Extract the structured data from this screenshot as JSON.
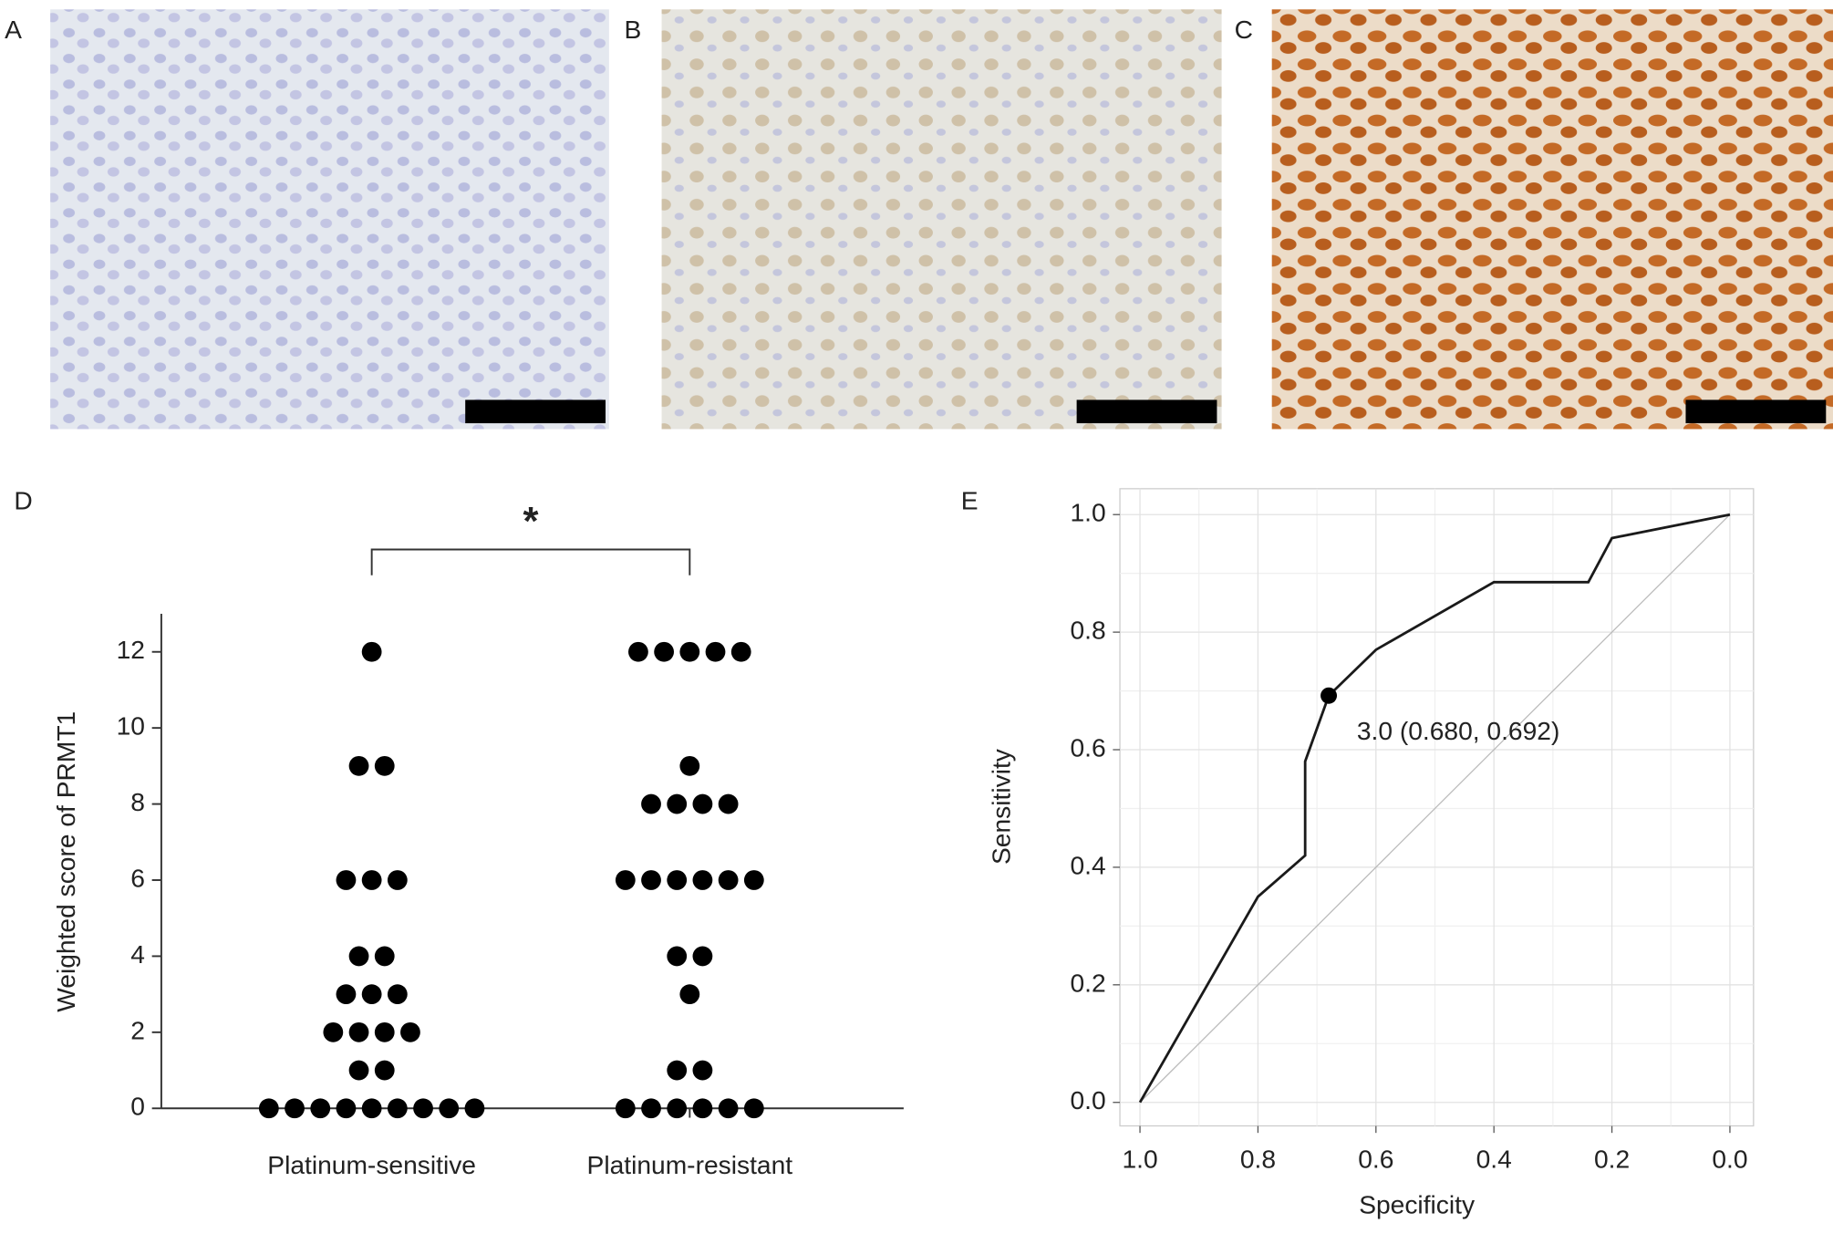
{
  "panel_labels": [
    "A",
    "B",
    "C",
    "D",
    "E"
  ],
  "chart_data": [
    {
      "type": "dot",
      "ylabel": "Weighted score of PRMT1",
      "categories": [
        "Platinum-sensitive",
        "Platinum-resistant"
      ],
      "values": [
        [
          12,
          9,
          9,
          6,
          6,
          6,
          4,
          4,
          3,
          3,
          3,
          2,
          2,
          2,
          2,
          1,
          1,
          0,
          0,
          0,
          0,
          0,
          0,
          0,
          0,
          0
        ],
        [
          12,
          12,
          12,
          12,
          12,
          9,
          8,
          8,
          8,
          8,
          6,
          6,
          6,
          6,
          6,
          6,
          4,
          4,
          3,
          1,
          1,
          0,
          0,
          0,
          0,
          0,
          0
        ]
      ],
      "color": "#000000",
      "ylim": [
        0,
        13
      ],
      "yticks": [
        0,
        2,
        4,
        6,
        8,
        10,
        12
      ],
      "annotation": "*"
    },
    {
      "type": "line",
      "xlabel": "Specificity",
      "ylabel": "Sensitivity",
      "x": [
        1.0,
        0.8,
        0.72,
        0.72,
        0.68,
        0.6,
        0.4,
        0.24,
        0.2,
        0.0
      ],
      "values": [
        0.0,
        0.35,
        0.42,
        0.58,
        0.692,
        0.77,
        0.885,
        0.885,
        0.96,
        1.0
      ],
      "color": "#1a1a1a",
      "cutoff": {
        "x": 0.68,
        "y": 0.692,
        "label": "3.0 (0.680, 0.692)"
      },
      "xlim": [
        1.034,
        -0.04
      ],
      "ylim": [
        -0.04,
        1.044
      ],
      "xticks": [
        {
          "value": 1,
          "label": "1.0"
        },
        0.8,
        0.6,
        0.4,
        0.2,
        {
          "value": 0,
          "label": "0.0"
        }
      ],
      "yticks": [
        {
          "value": 0,
          "label": "0.0"
        },
        0.2,
        0.4,
        0.6,
        0.8,
        {
          "value": 1,
          "label": "1.0"
        }
      ],
      "grid": true,
      "reference_line": true
    }
  ]
}
